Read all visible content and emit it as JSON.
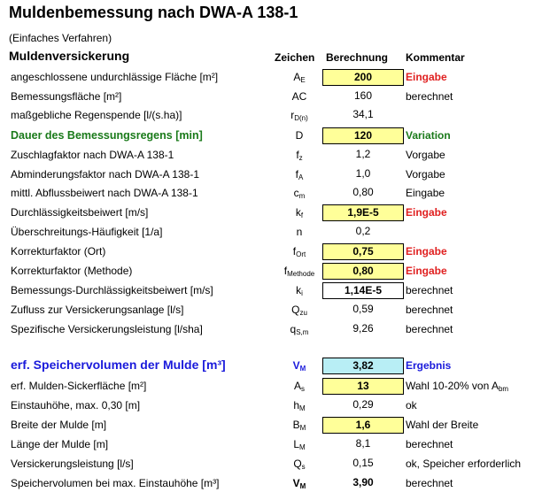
{
  "title": "Muldenbemessung nach DWA-A 138-1",
  "subtitle": "(Einfaches Verfahren)",
  "section": "Muldenversickerung",
  "headers": {
    "zeichen": "Zeichen",
    "berechnung": "Berechnung",
    "kommentar": "Kommentar"
  },
  "rows": [
    {
      "label": "angeschlossene undurchlässige Fläche [m²]",
      "sym": "A",
      "sub": "E",
      "value": "200",
      "comment": "Eingabe"
    },
    {
      "label": "Bemessungsfläche [m²]",
      "sym": "AC",
      "sub": "",
      "value": "160",
      "comment": "berechnet"
    },
    {
      "label": "maßgebliche Regenspende [l/(s.ha)]",
      "sym": "r",
      "sub": "D(n)",
      "value": "34,1",
      "comment": ""
    },
    {
      "label": "Dauer des Bemessungsregens [min]",
      "sym": "D",
      "sub": "",
      "value": "120",
      "comment": "Variation"
    },
    {
      "label": "Zuschlagfaktor nach DWA-A 138-1",
      "sym": "f",
      "sub": "z",
      "value": "1,2",
      "comment": "Vorgabe"
    },
    {
      "label": "Abminderungsfaktor nach DWA-A 138-1",
      "sym": "f",
      "sub": "A",
      "value": "1,0",
      "comment": "Vorgabe"
    },
    {
      "label": "mittl. Abflussbeiwert nach DWA-A 138-1",
      "sym": "c",
      "sub": "m",
      "value": "0,80",
      "comment": "Eingabe"
    },
    {
      "label": "Durchlässigkeitsbeiwert [m/s]",
      "sym": "k",
      "sub": "f",
      "value": "1,9E-5",
      "comment": "Eingabe"
    },
    {
      "label": "Überschreitungs-Häufigkeit [1/a]",
      "sym": "n",
      "sub": "",
      "value": "0,2",
      "comment": ""
    },
    {
      "label": "Korrekturfaktor (Ort)",
      "sym": "f",
      "sub": "Ort",
      "value": "0,75",
      "comment": "Eingabe"
    },
    {
      "label": "Korrekturfaktor (Methode)",
      "sym": "f",
      "sub": "Methode",
      "value": "0,80",
      "comment": "Eingabe"
    },
    {
      "label": "Bemessungs-Durchlässigkeitsbeiwert [m/s]",
      "sym": "k",
      "sub": "i",
      "value": "1,14E-5",
      "comment": "berechnet"
    },
    {
      "label": "Zufluss zur Versickerungsanlage [l/s]",
      "sym": "Q",
      "sub": "zu",
      "value": "0,59",
      "comment": "berechnet"
    },
    {
      "label": "Spezifische Versickerungsleistung [l/sha]",
      "sym": "q",
      "sub": "S,m",
      "value": "9,26",
      "comment": "berechnet"
    },
    {
      "label": "erf. Speichervolumen der Mulde [m³]",
      "sym": "V",
      "sub": "M",
      "value": "3,82",
      "comment": "Ergebnis"
    },
    {
      "label": "erf. Mulden-Sickerfläche [m²]",
      "sym": "A",
      "sub": "s",
      "value": "13",
      "comment": "Wahl 10-20% von A",
      "comment_sub": "bm"
    },
    {
      "label": "Einstauhöhe, max. 0,30 [m]",
      "sym": "h",
      "sub": "M",
      "value": "0,29",
      "comment": "ok"
    },
    {
      "label": "Breite der Mulde [m]",
      "sym": "B",
      "sub": "M",
      "value": "1,6",
      "comment": "Wahl der Breite"
    },
    {
      "label": "Länge der Mulde [m]",
      "sym": "L",
      "sub": "M",
      "value": "8,1",
      "comment": "berechnet"
    },
    {
      "label": "Versickerungsleistung [l/s]",
      "sym": "Q",
      "sub": "s",
      "value": "0,15",
      "comment": "ok, Speicher erforderlich"
    },
    {
      "label": "Speichervolumen bei max. Einstauhöhe [m³]",
      "sym": "V",
      "sub": "M",
      "value": "3,90",
      "comment": "berechnet"
    }
  ],
  "colors": {
    "input_fill": "#ffff99",
    "result_fill": "#b8eef5",
    "eingabe_red": "#e02020",
    "variation_green": "#1a7a1a",
    "ergebnis_blue": "#1a1adb"
  }
}
